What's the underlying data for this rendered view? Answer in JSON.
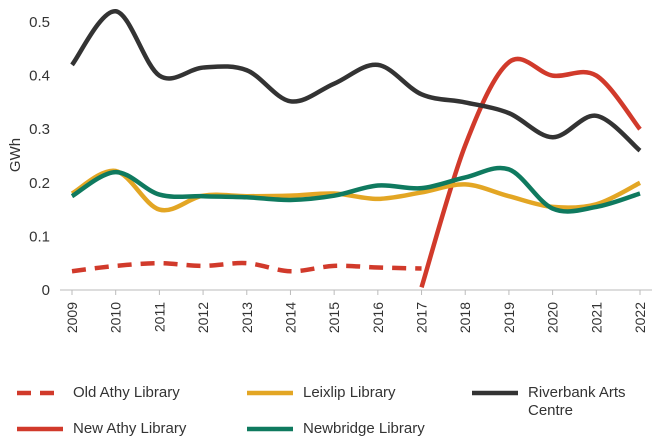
{
  "chart_data": {
    "type": "line",
    "ylabel": "GWh",
    "x": [
      "2009",
      "2010",
      "2011",
      "2012",
      "2013",
      "2014",
      "2015",
      "2016",
      "2017",
      "2018",
      "2019",
      "2020",
      "2021",
      "2022"
    ],
    "ylim": [
      0,
      0.5
    ],
    "yticks": [
      0,
      0.1,
      0.2,
      0.3,
      0.4,
      0.5
    ],
    "series": [
      {
        "name": "Old Athy Library",
        "color": "#d13a2b",
        "dash": true,
        "values": [
          0.035,
          0.045,
          0.05,
          0.045,
          0.05,
          0.035,
          0.045,
          0.042,
          0.04,
          null,
          null,
          null,
          null,
          null
        ]
      },
      {
        "name": "New Athy Library",
        "color": "#d13a2b",
        "values": [
          null,
          null,
          null,
          null,
          null,
          null,
          null,
          null,
          0.005,
          0.27,
          0.425,
          0.4,
          0.4,
          0.3
        ]
      },
      {
        "name": "Leixlip Library",
        "color": "#e3a624",
        "values": [
          0.18,
          0.222,
          0.15,
          0.176,
          0.175,
          0.176,
          0.18,
          0.17,
          0.182,
          0.197,
          0.175,
          0.155,
          0.16,
          0.2
        ]
      },
      {
        "name": "Newbridge Library",
        "color": "#0f7a5f",
        "values": [
          0.175,
          0.22,
          0.178,
          0.175,
          0.173,
          0.168,
          0.176,
          0.195,
          0.19,
          0.21,
          0.225,
          0.152,
          0.155,
          0.18
        ]
      },
      {
        "name": "Riverbank Arts Centre",
        "color": "#333333",
        "values": [
          0.42,
          0.52,
          0.4,
          0.415,
          0.41,
          0.352,
          0.385,
          0.42,
          0.365,
          0.35,
          0.33,
          0.285,
          0.325,
          0.26
        ]
      }
    ],
    "legend": "bottom"
  }
}
